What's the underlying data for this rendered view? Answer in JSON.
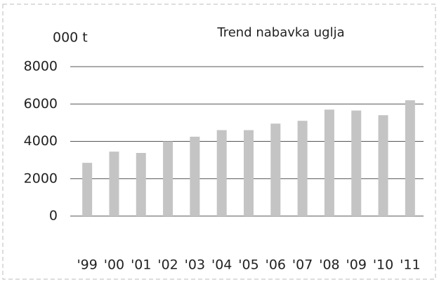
{
  "chart_data": {
    "type": "bar",
    "title": "Trend nabavka uglja",
    "y_label": "000 t",
    "categories": [
      "'99",
      "'00",
      "'01",
      "'02",
      "'03",
      "'04",
      "'05",
      "'06",
      "'07",
      "'08",
      "'09",
      "'10",
      "'11"
    ],
    "values": [
      2850,
      3450,
      3380,
      4000,
      4250,
      4600,
      4600,
      4950,
      5100,
      5700,
      5650,
      5400,
      6200
    ],
    "color": "#c4c4c4",
    "ylim": [
      0,
      8000
    ],
    "yticks": [
      0,
      2000,
      4000,
      6000,
      8000
    ],
    "grid": true
  }
}
